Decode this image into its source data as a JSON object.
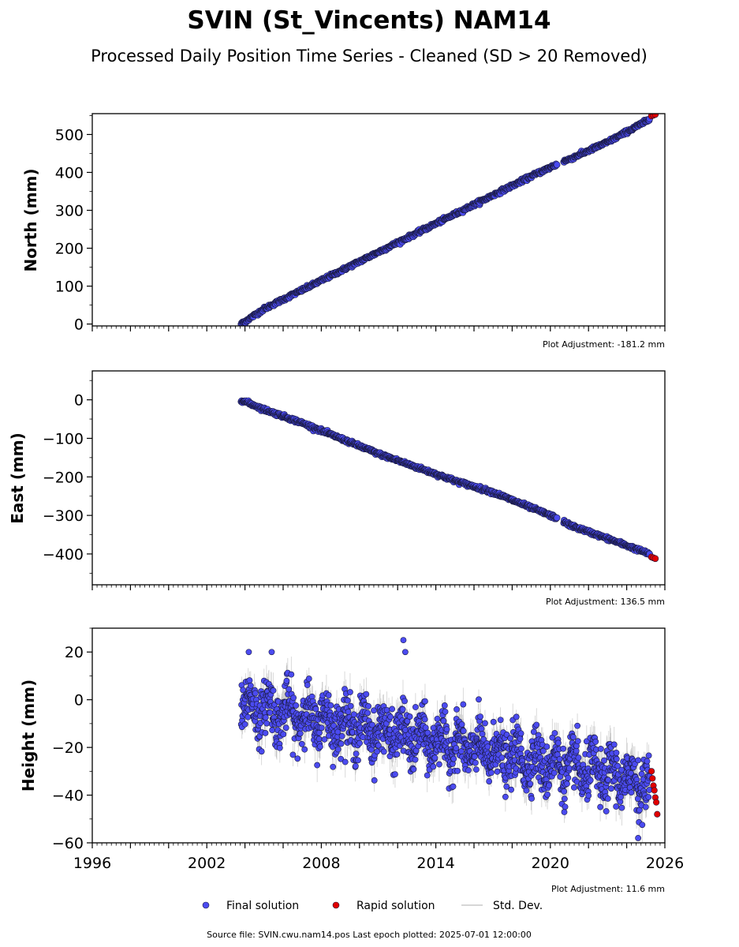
{
  "page": {
    "title": "SVIN (St_Vincents) NAM14",
    "subtitle": "Processed Daily Position Time Series - Cleaned (SD > 20 Removed)",
    "footer": "Source file: SVIN.cwu.nam14.pos  Last epoch plotted: 2025-07-01 12:00:00"
  },
  "legend": {
    "final": "Final solution",
    "rapid": "Rapid solution",
    "std": "Std. Dev."
  },
  "colors": {
    "final": "#4b4bf0",
    "rapid": "#e00000",
    "std": "#b0b0b0",
    "edge": "#1a1a40"
  },
  "chart_data": [
    {
      "type": "scatter",
      "ylabel": "North (mm)",
      "adjustment": "Plot Adjustment: -181.2 mm",
      "xlim": [
        1996,
        2026
      ],
      "ylim": [
        -5,
        555
      ],
      "yticks": [
        0,
        100,
        200,
        300,
        400,
        500
      ],
      "ytick_labels": [
        "0",
        "100",
        "200",
        "300",
        "400",
        "500"
      ],
      "grid": false,
      "series": [
        {
          "name": "Final solution",
          "x": [
            2003.8,
            2005,
            2007,
            2009,
            2011,
            2013,
            2015,
            2017,
            2019,
            2020.5,
            2021,
            2023,
            2025.2
          ],
          "y": [
            0,
            40,
            90,
            140,
            190,
            240,
            290,
            340,
            390,
            425,
            435,
            480,
            540
          ]
        },
        {
          "name": "Rapid solution",
          "x": [
            2025.3,
            2025.4,
            2025.5
          ],
          "y": [
            549,
            551,
            553
          ]
        }
      ]
    },
    {
      "type": "scatter",
      "ylabel": "East (mm)",
      "adjustment": "Plot Adjustment: 136.5 mm",
      "xlim": [
        1996,
        2026
      ],
      "ylim": [
        -480,
        75
      ],
      "yticks": [
        0,
        -100,
        -200,
        -300,
        -400
      ],
      "ytick_labels": [
        "0",
        "−100",
        "−200",
        "−300",
        "−400"
      ],
      "grid": false,
      "series": [
        {
          "name": "Final solution",
          "x": [
            2003.8,
            2005,
            2007,
            2009,
            2011,
            2013,
            2015,
            2017,
            2019,
            2020.5,
            2021,
            2023,
            2025.2
          ],
          "y": [
            0,
            -25,
            -60,
            -100,
            -140,
            -175,
            -210,
            -240,
            -280,
            -310,
            -325,
            -360,
            -400
          ]
        },
        {
          "name": "Rapid solution",
          "x": [
            2025.3,
            2025.4,
            2025.5
          ],
          "y": [
            -408,
            -410,
            -412
          ]
        }
      ]
    },
    {
      "type": "scatter",
      "ylabel": "Height (mm)",
      "adjustment": "Plot Adjustment: 11.6 mm",
      "xlim": [
        1996,
        2026
      ],
      "ylim": [
        -60,
        30
      ],
      "yticks": [
        20,
        0,
        -20,
        -40,
        -60
      ],
      "ytick_labels": [
        "20",
        "0",
        "−20",
        "−40",
        "−60"
      ],
      "xticks": [
        1996,
        2002,
        2008,
        2014,
        2020,
        2026
      ],
      "xtick_labels": [
        "1996",
        "2002",
        "2008",
        "2014",
        "2020",
        "2026"
      ],
      "grid": false,
      "series": [
        {
          "name": "Final solution",
          "trend": {
            "x": [
              2003.8,
              2025.2
            ],
            "y": [
              -2,
              -35
            ]
          },
          "outliers": {
            "x": [
              2012.3,
              2012.4,
              2004.2,
              2005.4,
              2024.6
            ],
            "y": [
              25,
              20,
              20,
              20,
              -58
            ]
          }
        },
        {
          "name": "Rapid solution",
          "x": [
            2025.3,
            2025.35,
            2025.4,
            2025.45,
            2025.5,
            2025.55,
            2025.6
          ],
          "y": [
            -30,
            -33,
            -36,
            -38,
            -41,
            -43,
            -48
          ]
        }
      ]
    }
  ]
}
